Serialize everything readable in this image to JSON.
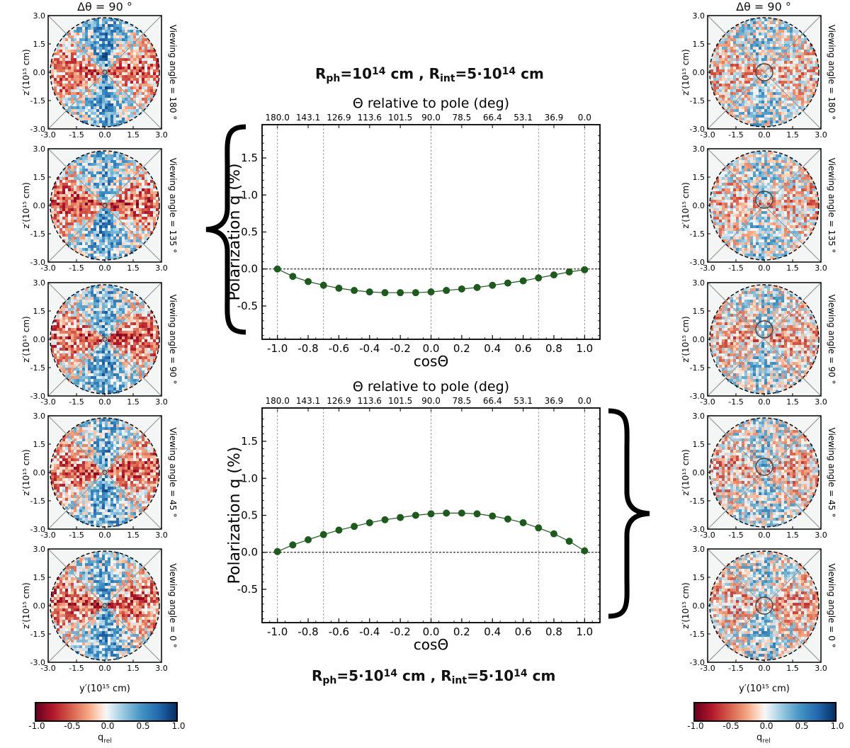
{
  "figure": {
    "map_title_left": "Δθ = 90 °",
    "map_title_right": "Δθ = 90 °",
    "top_plot_title": {
      "r_ph_prefix": "R",
      "r_ph_sub": "ph",
      "r_ph_value": "=10",
      "r_ph_exp": "14",
      "r_ph_unit": " cm , ",
      "r_int_prefix": "R",
      "r_int_sub": "int",
      "r_int_value": "=5·10",
      "r_int_exp": "14",
      "r_int_unit": " cm"
    },
    "bottom_plot_title": {
      "r_ph_prefix": "R",
      "r_ph_sub": "ph",
      "r_ph_value": "=5·10",
      "r_ph_exp": "14",
      "r_ph_unit": " cm , ",
      "r_int_prefix": "R",
      "r_int_sub": "int",
      "r_int_value": "=5·10",
      "r_int_exp": "14",
      "r_int_unit": " cm"
    },
    "map_xlabel": "y′(10¹⁵ cm)",
    "map_ylabel": "z′(10¹⁵ cm)",
    "map_ticks": [
      "-3.0",
      "-1.5",
      "0.0",
      "1.5",
      "3.0"
    ],
    "viewing_angles": [
      "Viewing angle = 180 °",
      "Viewing angle = 135 °",
      "Viewing angle = 90 °",
      "Viewing angle = 45 °",
      "Viewing angle = 0 °"
    ],
    "colorbar": {
      "label": "q",
      "label_sub": "rel",
      "ticks": [
        "-1.0",
        "-0.5",
        "0.0",
        "0.5",
        "1.0"
      ],
      "cmap": "RdBu"
    },
    "colors": {
      "series": "#1e5a1e",
      "axis": "#000000",
      "grid": "#888888"
    }
  },
  "chart_data": [
    {
      "type": "line",
      "title": "Θ relative to pole (deg)",
      "xlabel": "cosΘ",
      "ylabel": "Polarization q (%)",
      "xlim": [
        -1.1,
        1.1
      ],
      "ylim": [
        -0.95,
        1.95
      ],
      "xticks": [
        "-1.0",
        "-0.8",
        "-0.6",
        "-0.4",
        "-0.2",
        "0.0",
        "0.2",
        "0.4",
        "0.6",
        "0.8",
        "1.0"
      ],
      "yticks": [
        "-0.5",
        "0.0",
        "0.5",
        "1.0",
        "1.5"
      ],
      "top_ticks": [
        "180.0",
        "143.1",
        "126.9",
        "113.6",
        "101.5",
        "90.0",
        "78.5",
        "66.4",
        "53.1",
        "36.9",
        "0.0"
      ],
      "series": [
        {
          "name": "q",
          "x": [
            -1.0,
            -0.9,
            -0.8,
            -0.7,
            -0.6,
            -0.5,
            -0.4,
            -0.3,
            -0.2,
            -0.1,
            0.0,
            0.1,
            0.2,
            0.3,
            0.4,
            0.5,
            0.6,
            0.7,
            0.8,
            0.9,
            1.0
          ],
          "y": [
            0.0,
            -0.1,
            -0.17,
            -0.22,
            -0.26,
            -0.29,
            -0.31,
            -0.32,
            -0.32,
            -0.32,
            -0.31,
            -0.29,
            -0.27,
            -0.25,
            -0.22,
            -0.19,
            -0.16,
            -0.12,
            -0.08,
            -0.04,
            -0.01
          ]
        }
      ]
    },
    {
      "type": "line",
      "title": "Θ relative to pole (deg)",
      "xlabel": "cosΘ",
      "ylabel": "Polarization q (%)",
      "xlim": [
        -1.1,
        1.1
      ],
      "ylim": [
        -0.95,
        1.95
      ],
      "xticks": [
        "-1.0",
        "-0.8",
        "-0.6",
        "-0.4",
        "-0.2",
        "0.0",
        "0.2",
        "0.4",
        "0.6",
        "0.8",
        "1.0"
      ],
      "yticks": [
        "-0.5",
        "0.0",
        "0.5",
        "1.0",
        "1.5"
      ],
      "top_ticks": [
        "180.0",
        "143.1",
        "126.9",
        "113.6",
        "101.5",
        "90.0",
        "78.5",
        "66.4",
        "53.1",
        "36.9",
        "0.0"
      ],
      "series": [
        {
          "name": "q",
          "x": [
            -1.0,
            -0.9,
            -0.8,
            -0.7,
            -0.6,
            -0.5,
            -0.4,
            -0.3,
            -0.2,
            -0.1,
            0.0,
            0.1,
            0.2,
            0.3,
            0.4,
            0.5,
            0.6,
            0.7,
            0.8,
            0.9,
            1.0
          ],
          "y": [
            0.01,
            0.1,
            0.17,
            0.24,
            0.3,
            0.35,
            0.4,
            0.44,
            0.47,
            0.5,
            0.52,
            0.53,
            0.53,
            0.52,
            0.49,
            0.45,
            0.4,
            0.33,
            0.25,
            0.15,
            0.02
          ]
        }
      ]
    }
  ]
}
